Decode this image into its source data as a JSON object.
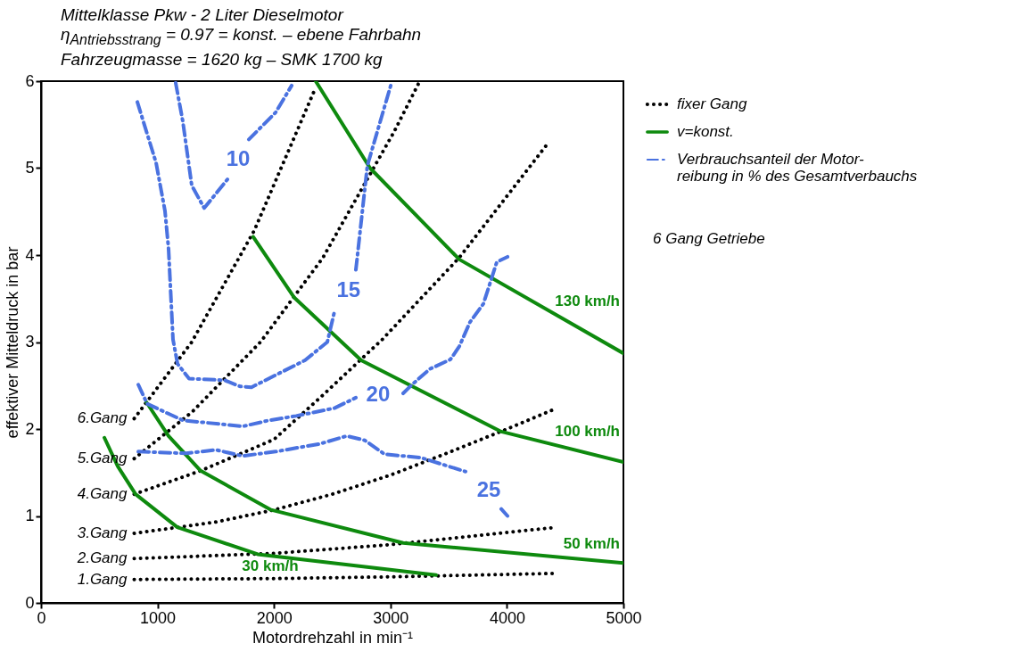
{
  "chart_data": {
    "type": "line",
    "title": "Mittelklasse Pkw - 2 Liter Dieselmotor",
    "subtitle": "η$_{Antriebsstrang}$ = 0.97 = konst. – ebene Fahrbahn\nFahrzeugmasse = 1620 kg – SMK 1700 kg",
    "xlabel": "Motordrehzahl in min⁻¹",
    "ylabel": "effektiver Mitteldruck in bar",
    "xlim": [
      0,
      5000
    ],
    "ylim": [
      0,
      6
    ],
    "xticks": [
      0,
      1000,
      2000,
      3000,
      4000,
      5000
    ],
    "yticks": [
      0,
      1,
      2,
      3,
      4,
      5,
      6
    ],
    "legend": "right",
    "annotations": [
      "fixer Gang",
      "v=konst.",
      "Verbrauchsanteil der Motor-reibung in % des Gesamtverbauchs",
      "6 Gang Getriebe"
    ],
    "series": [
      {
        "name": "1.Gang",
        "color": "#000000",
        "line_style": "dotted",
        "x": [
          800,
          2000,
          3000,
          4430
        ],
        "values": [
          0.27,
          0.28,
          0.3,
          0.34
        ]
      },
      {
        "name": "2.Gang",
        "color": "#000000",
        "line_style": "dotted",
        "x": [
          800,
          2000,
          3000,
          4430
        ],
        "values": [
          0.51,
          0.57,
          0.67,
          0.87
        ]
      },
      {
        "name": "3.Gang",
        "color": "#000000",
        "line_style": "dotted",
        "x": [
          800,
          1500,
          2000,
          2500,
          3000,
          3500,
          4000,
          4430
        ],
        "values": [
          0.8,
          0.93,
          1.07,
          1.25,
          1.47,
          1.73,
          2.0,
          2.24
        ]
      },
      {
        "name": "4.Gang",
        "color": "#000000",
        "line_style": "dotted",
        "x": [
          800,
          1370,
          2000,
          2420,
          2930,
          3590,
          4360
        ],
        "values": [
          1.25,
          1.52,
          1.88,
          2.39,
          3.03,
          3.97,
          5.3
        ]
      },
      {
        "name": "5.Gang",
        "color": "#000000",
        "line_style": "dotted",
        "x": [
          800,
          1300,
          1884,
          2420,
          3032,
          3240
        ],
        "values": [
          1.66,
          2.2,
          3.0,
          3.97,
          5.42,
          5.97
        ]
      },
      {
        "name": "6.Gang",
        "color": "#000000",
        "line_style": "dotted",
        "x": [
          800,
          1294,
          1830,
          2343
        ],
        "values": [
          2.12,
          3.0,
          4.28,
          5.88
        ]
      },
      {
        "name": "130 km/h",
        "color": "#0e8a0e",
        "line_style": "solid",
        "x": [
          2358,
          2825,
          3591,
          5000
        ],
        "values": [
          6.0,
          5.0,
          3.95,
          2.87
        ]
      },
      {
        "name": "100 km/h",
        "color": "#0e8a0e",
        "line_style": "solid",
        "x": [
          1822,
          2175,
          2749,
          3951,
          5000
        ],
        "values": [
          4.21,
          3.51,
          2.79,
          1.97,
          1.62
        ]
      },
      {
        "name": "50 km/h",
        "color": "#0e8a0e",
        "line_style": "solid",
        "x": [
          904,
          1095,
          1370,
          1975,
          3109,
          5000
        ],
        "values": [
          2.31,
          1.92,
          1.52,
          1.07,
          0.69,
          0.46
        ]
      },
      {
        "name": "30 km/h",
        "color": "#0e8a0e",
        "line_style": "solid",
        "x": [
          544,
          659,
          812,
          1170,
          1860,
          3392
        ],
        "values": [
          1.9,
          1.57,
          1.25,
          0.87,
          0.56,
          0.32
        ]
      },
      {
        "name": "10",
        "color": "#4a72e0",
        "line_style": "dashed",
        "x": [
          1156,
          1217,
          1294,
          1401,
          1600,
          1692,
          1784,
          2014,
          2152
        ],
        "values": [
          5.98,
          5.54,
          4.8,
          4.54,
          4.87,
          null,
          5.33,
          5.64,
          5.95
        ]
      },
      {
        "name": "15",
        "color": "#4a72e0",
        "line_style": "dashed",
        "x": [
          827,
          988,
          1064,
          1095,
          1133,
          1172,
          1271,
          1577,
          1708,
          1807,
          2014,
          2266,
          2458,
          2519,
          2640,
          2703,
          2802,
          3009
        ],
        "values": [
          5.76,
          5.06,
          4.51,
          4.07,
          3.03,
          2.75,
          2.58,
          2.56,
          2.49,
          2.48,
          2.62,
          2.79,
          3.0,
          3.35,
          null,
          3.83,
          5.03,
          5.98
        ]
      },
      {
        "name": "20",
        "color": "#4a72e0",
        "line_style": "dashed",
        "x": [
          835,
          911,
          1217,
          1730,
          1960,
          2190,
          2519,
          2703,
          2894,
          3109,
          3185,
          3338,
          3515,
          3591,
          3683,
          3798,
          3913,
          4005
        ],
        "values": [
          2.51,
          2.29,
          2.1,
          2.03,
          2.1,
          2.15,
          2.24,
          2.36,
          null,
          2.41,
          2.51,
          2.69,
          2.8,
          2.95,
          3.23,
          3.44,
          3.92,
          3.98
        ]
      },
      {
        "name": "25",
        "color": "#4a72e0",
        "line_style": "dashed",
        "x": [
          835,
          1248,
          1501,
          1730,
          2014,
          2397,
          2626,
          2779,
          2950,
          3262,
          3645,
          3844,
          3951,
          4005
        ],
        "values": [
          1.74,
          1.72,
          1.76,
          1.69,
          1.74,
          1.83,
          1.92,
          1.87,
          1.71,
          1.67,
          1.51,
          null,
          1.08,
          1.0
        ]
      }
    ]
  }
}
